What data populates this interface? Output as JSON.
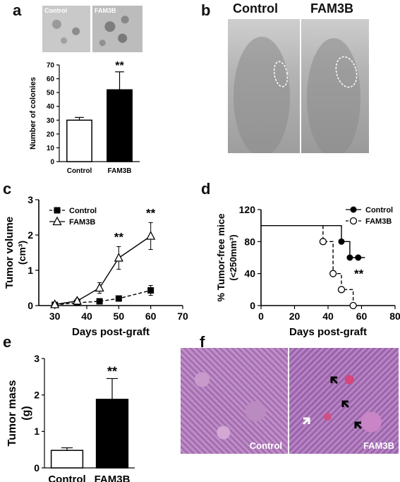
{
  "panels": {
    "a": {
      "letter": "a",
      "photo_labels": [
        "Control",
        "FAM3B"
      ]
    },
    "b": {
      "letter": "b",
      "photo_labels": [
        "Control",
        "FAM3B"
      ]
    },
    "c": {
      "letter": "c"
    },
    "d": {
      "letter": "d"
    },
    "e": {
      "letter": "e"
    },
    "f": {
      "letter": "f",
      "photo_labels": [
        "Control",
        "FAM3B"
      ]
    }
  },
  "chart_data": [
    {
      "panel": "a",
      "type": "bar",
      "title": "",
      "xlabel": "",
      "ylabel": "Number of colonies",
      "categories": [
        "Control",
        "FAM3B"
      ],
      "values": [
        30,
        52
      ],
      "errors": [
        2,
        13
      ],
      "fills": [
        "#ffffff",
        "#000000"
      ],
      "ylim": [
        0,
        70
      ],
      "yticks": [
        0,
        10,
        20,
        30,
        40,
        50,
        60,
        70
      ],
      "annotations": [
        {
          "category": "FAM3B",
          "text": "**"
        }
      ]
    },
    {
      "panel": "c",
      "type": "line",
      "title": "",
      "xlabel": "Days post-graft",
      "ylabel": "Tumor volume",
      "ylabel_unit": "(cm³)",
      "xlim": [
        25,
        70
      ],
      "xticks": [
        30,
        40,
        50,
        60,
        70
      ],
      "ylim": [
        0,
        3
      ],
      "yticks": [
        0,
        1,
        2,
        3
      ],
      "legend_position": "top-left",
      "series": [
        {
          "name": "Control",
          "marker": "square-filled",
          "line": "dashed",
          "x": [
            30,
            37,
            44,
            50,
            60
          ],
          "y": [
            0.02,
            0.08,
            0.12,
            0.2,
            0.43
          ],
          "err": [
            0.05,
            0.05,
            0.05,
            0.07,
            0.14
          ]
        },
        {
          "name": "FAM3B",
          "marker": "triangle-open",
          "line": "solid",
          "x": [
            30,
            37,
            44,
            50,
            60
          ],
          "y": [
            0.03,
            0.13,
            0.5,
            1.35,
            1.97
          ],
          "err": [
            0.05,
            0.07,
            0.15,
            0.32,
            0.38
          ]
        }
      ],
      "annotations": [
        {
          "x": 50,
          "text": "**"
        },
        {
          "x": 60,
          "text": "**"
        }
      ]
    },
    {
      "panel": "d",
      "type": "line",
      "title": "",
      "xlabel": "Days post-graft",
      "ylabel": "% Tumor-free mice",
      "ylabel_unit": "(<250mm³)",
      "xlim": [
        0,
        80
      ],
      "xticks": [
        0,
        20,
        40,
        60,
        80
      ],
      "ylim": [
        0,
        120
      ],
      "yticks": [
        0,
        40,
        80,
        120
      ],
      "legend_position": "top-right",
      "series": [
        {
          "name": "Control",
          "marker": "circle-filled",
          "line": "solid",
          "x": [
            0,
            48,
            48,
            53,
            53,
            62
          ],
          "y": [
            100,
            100,
            80,
            80,
            60,
            60
          ],
          "marker_points": [
            [
              48,
              80
            ],
            [
              53,
              60
            ],
            [
              58,
              60
            ]
          ]
        },
        {
          "name": "FAM3B",
          "marker": "circle-open",
          "line": "dashed",
          "x": [
            37,
            37,
            43,
            43,
            48,
            48,
            55,
            55
          ],
          "y": [
            100,
            80,
            80,
            40,
            40,
            20,
            20,
            0
          ],
          "marker_points": [
            [
              37,
              80
            ],
            [
              43,
              40
            ],
            [
              48,
              20
            ],
            [
              55,
              0
            ]
          ]
        }
      ],
      "annotations": [
        {
          "x": 55,
          "y": 35,
          "text": "**"
        }
      ]
    },
    {
      "panel": "e",
      "type": "bar",
      "title": "",
      "xlabel": "",
      "ylabel": "Tumor mass",
      "ylabel_unit": "(g)",
      "categories": [
        "Control",
        "FAM3B"
      ],
      "values": [
        0.48,
        1.88
      ],
      "errors": [
        0.07,
        0.57
      ],
      "fills": [
        "#ffffff",
        "#000000"
      ],
      "ylim": [
        0,
        3
      ],
      "yticks": [
        0,
        1,
        2,
        3
      ],
      "annotations": [
        {
          "category": "FAM3B",
          "text": "**"
        }
      ]
    }
  ]
}
